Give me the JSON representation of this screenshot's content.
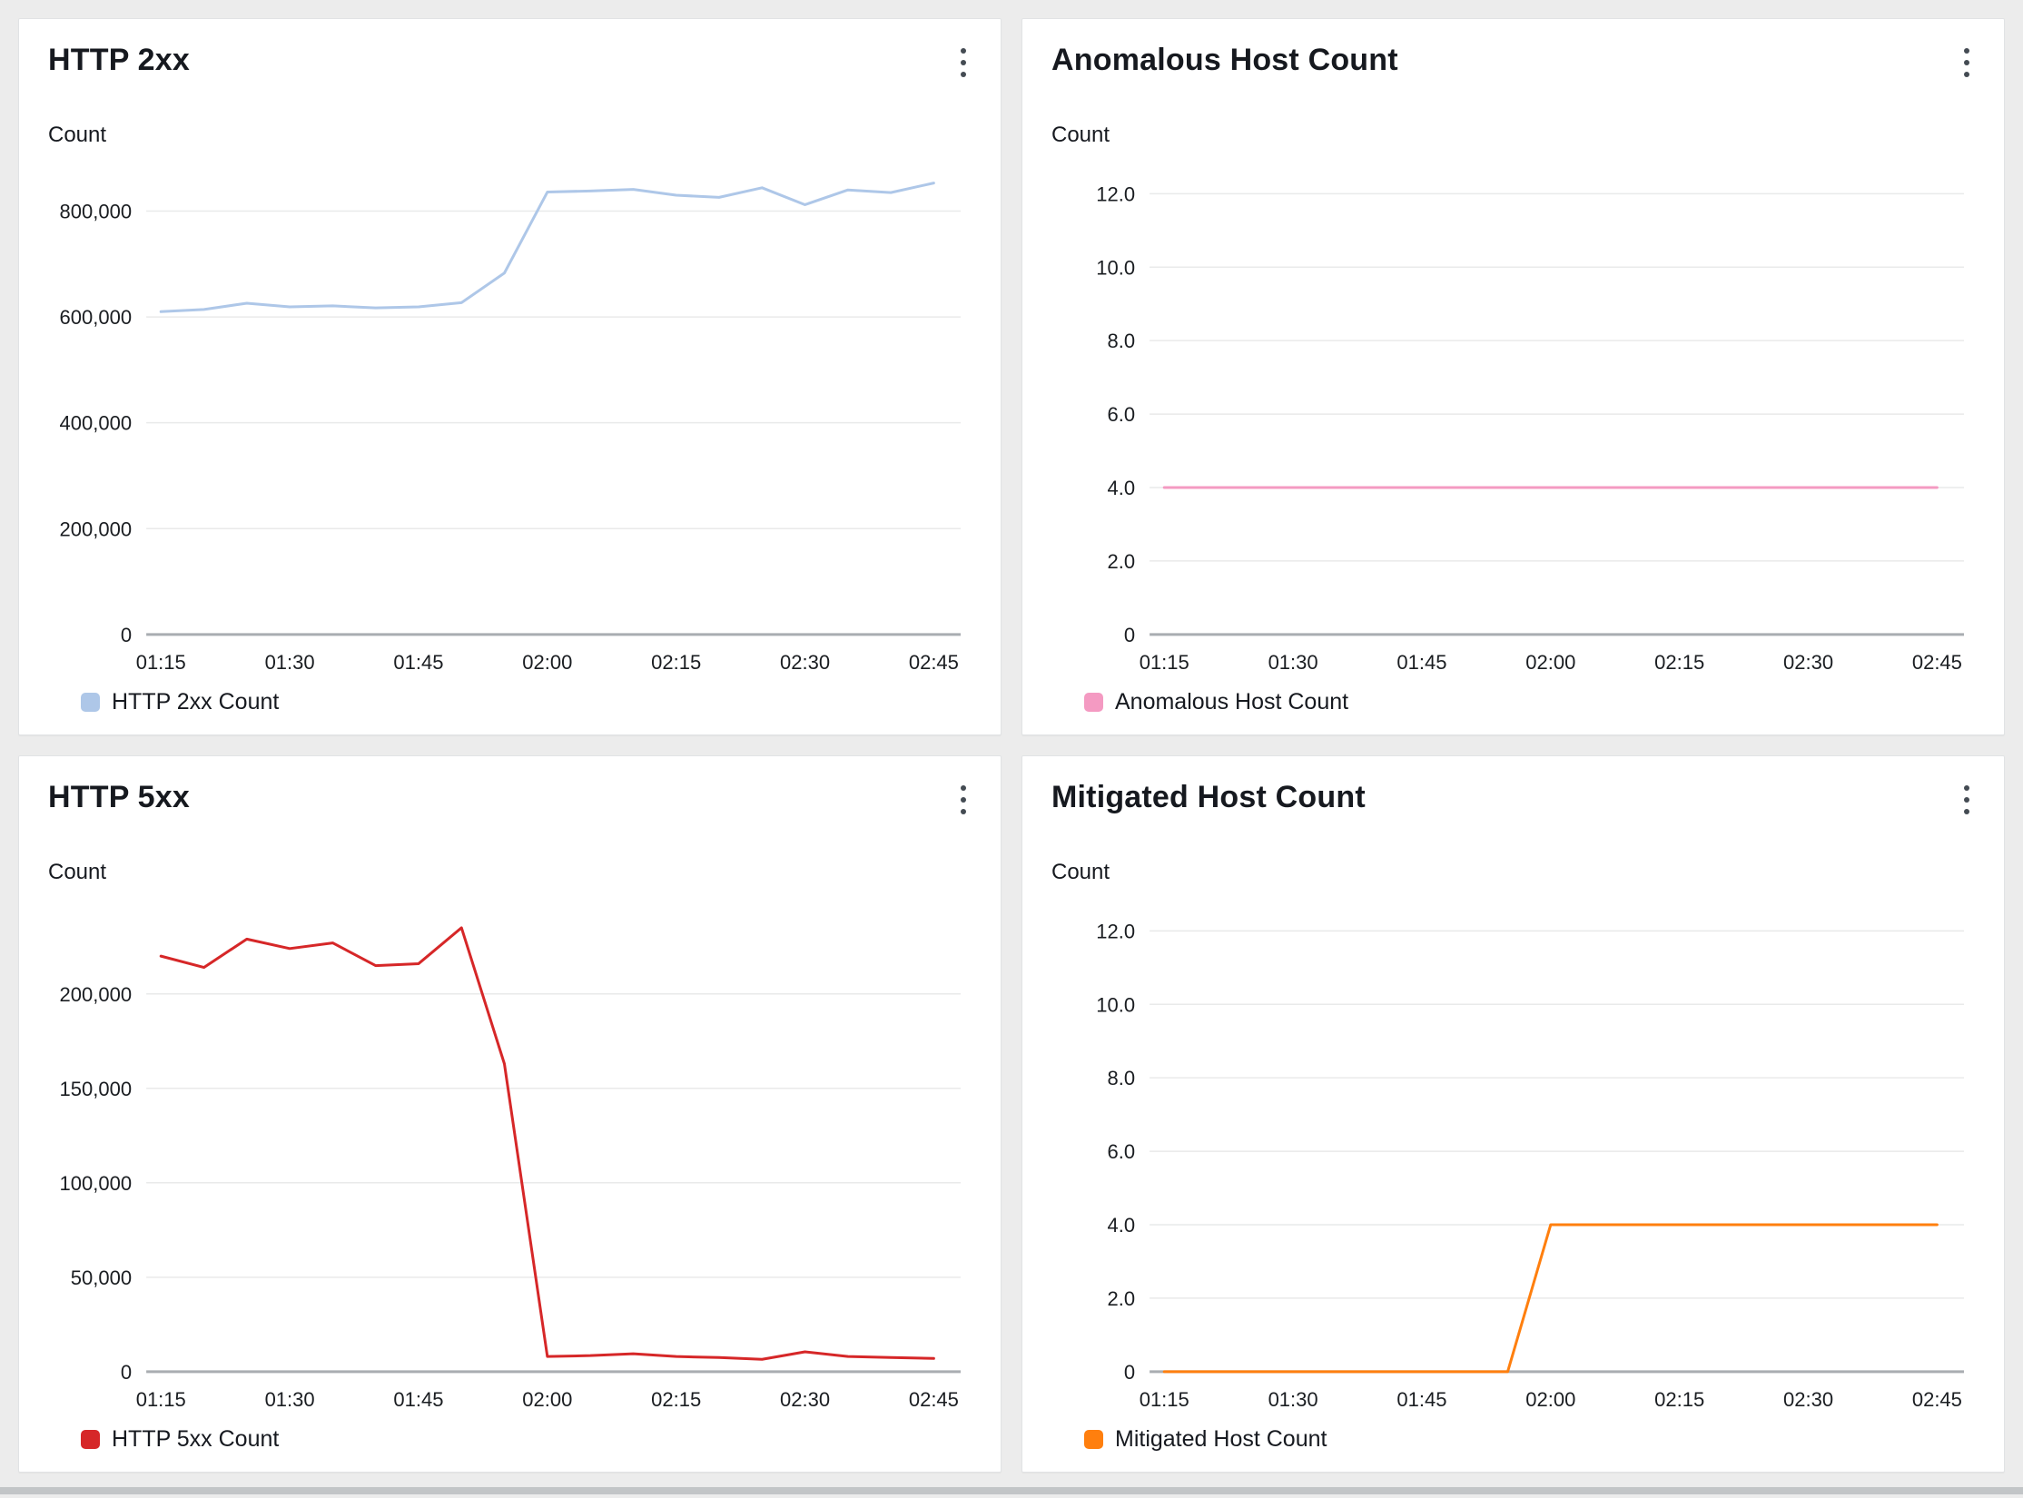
{
  "page": {
    "background": "#ececec"
  },
  "chart_data": [
    {
      "type": "line",
      "title": "HTTP 2xx",
      "ylabel": "Count",
      "legend": "HTTP 2xx Count",
      "color": "#aec7e8",
      "x": [
        "01:15",
        "01:20",
        "01:25",
        "01:30",
        "01:35",
        "01:40",
        "01:45",
        "01:50",
        "01:55",
        "02:00",
        "02:05",
        "02:10",
        "02:15",
        "02:20",
        "02:25",
        "02:30",
        "02:35",
        "02:40",
        "02:45"
      ],
      "x_tick_labels": [
        "01:15",
        "01:30",
        "01:45",
        "02:00",
        "02:15",
        "02:30",
        "02:45"
      ],
      "values": [
        610000,
        614000,
        626000,
        619000,
        621000,
        617000,
        619000,
        627000,
        683000,
        836000,
        838000,
        841000,
        830000,
        826000,
        844000,
        812000,
        840000,
        835000,
        853000
      ],
      "ylim": [
        0,
        878000
      ],
      "y_ticks": [
        {
          "v": 0,
          "label": "0"
        },
        {
          "v": 200000,
          "label": "200,000"
        },
        {
          "v": 400000,
          "label": "400,000"
        },
        {
          "v": 600000,
          "label": "600,000"
        },
        {
          "v": 800000,
          "label": "800,000"
        }
      ],
      "grid": true,
      "legend_position": "bottom"
    },
    {
      "type": "line",
      "title": "Anomalous Host Count",
      "ylabel": "Count",
      "legend": "Anomalous Host Count",
      "color": "#f49ac2",
      "x": [
        "01:15",
        "01:20",
        "01:25",
        "01:30",
        "01:35",
        "01:40",
        "01:45",
        "01:50",
        "01:55",
        "02:00",
        "02:05",
        "02:10",
        "02:15",
        "02:20",
        "02:25",
        "02:30",
        "02:35",
        "02:40",
        "02:45"
      ],
      "x_tick_labels": [
        "01:15",
        "01:30",
        "01:45",
        "02:00",
        "02:15",
        "02:30",
        "02:45"
      ],
      "values": [
        4,
        4,
        4,
        4,
        4,
        4,
        4,
        4,
        4,
        4,
        4,
        4,
        4,
        4,
        4,
        4,
        4,
        4,
        4
      ],
      "ylim": [
        0,
        12.65
      ],
      "y_ticks": [
        {
          "v": 0,
          "label": "0"
        },
        {
          "v": 2,
          "label": "2.0"
        },
        {
          "v": 4,
          "label": "4.0"
        },
        {
          "v": 6,
          "label": "6.0"
        },
        {
          "v": 8,
          "label": "8.0"
        },
        {
          "v": 10,
          "label": "10.0"
        },
        {
          "v": 12,
          "label": "12.0"
        }
      ],
      "grid": true,
      "legend_position": "bottom"
    },
    {
      "type": "line",
      "title": "HTTP 5xx",
      "ylabel": "Count",
      "legend": "HTTP 5xx Count",
      "color": "#d62728",
      "x": [
        "01:15",
        "01:20",
        "01:25",
        "01:30",
        "01:35",
        "01:40",
        "01:45",
        "01:50",
        "01:55",
        "02:00",
        "02:05",
        "02:10",
        "02:15",
        "02:20",
        "02:25",
        "02:30",
        "02:35",
        "02:40",
        "02:45"
      ],
      "x_tick_labels": [
        "01:15",
        "01:30",
        "01:45",
        "02:00",
        "02:15",
        "02:30",
        "02:45"
      ],
      "values": [
        220000,
        214000,
        229000,
        224000,
        227000,
        215000,
        216000,
        235000,
        163000,
        8000,
        8500,
        9500,
        8000,
        7500,
        6500,
        10500,
        8000,
        7500,
        7000
      ],
      "ylim": [
        0,
        246000
      ],
      "y_ticks": [
        {
          "v": 0,
          "label": "0"
        },
        {
          "v": 50000,
          "label": "50,000"
        },
        {
          "v": 100000,
          "label": "100,000"
        },
        {
          "v": 150000,
          "label": "150,000"
        },
        {
          "v": 200000,
          "label": "200,000"
        }
      ],
      "grid": true,
      "legend_position": "bottom"
    },
    {
      "type": "line",
      "title": "Mitigated Host Count",
      "ylabel": "Count",
      "legend": "Mitigated Host Count",
      "color": "#ff7f0e",
      "x": [
        "01:15",
        "01:20",
        "01:25",
        "01:30",
        "01:35",
        "01:40",
        "01:45",
        "01:50",
        "01:55",
        "02:00",
        "02:05",
        "02:10",
        "02:15",
        "02:20",
        "02:25",
        "02:30",
        "02:35",
        "02:40",
        "02:45"
      ],
      "x_tick_labels": [
        "01:15",
        "01:30",
        "01:45",
        "02:00",
        "02:15",
        "02:30",
        "02:45"
      ],
      "values": [
        0,
        0,
        0,
        0,
        0,
        0,
        0,
        0,
        0,
        4,
        4,
        4,
        4,
        4,
        4,
        4,
        4,
        4,
        4
      ],
      "ylim": [
        0,
        12.65
      ],
      "y_ticks": [
        {
          "v": 0,
          "label": "0"
        },
        {
          "v": 2,
          "label": "2.0"
        },
        {
          "v": 4,
          "label": "4.0"
        },
        {
          "v": 6,
          "label": "6.0"
        },
        {
          "v": 8,
          "label": "8.0"
        },
        {
          "v": 10,
          "label": "10.0"
        },
        {
          "v": 12,
          "label": "12.0"
        }
      ],
      "grid": true,
      "legend_position": "bottom"
    }
  ]
}
